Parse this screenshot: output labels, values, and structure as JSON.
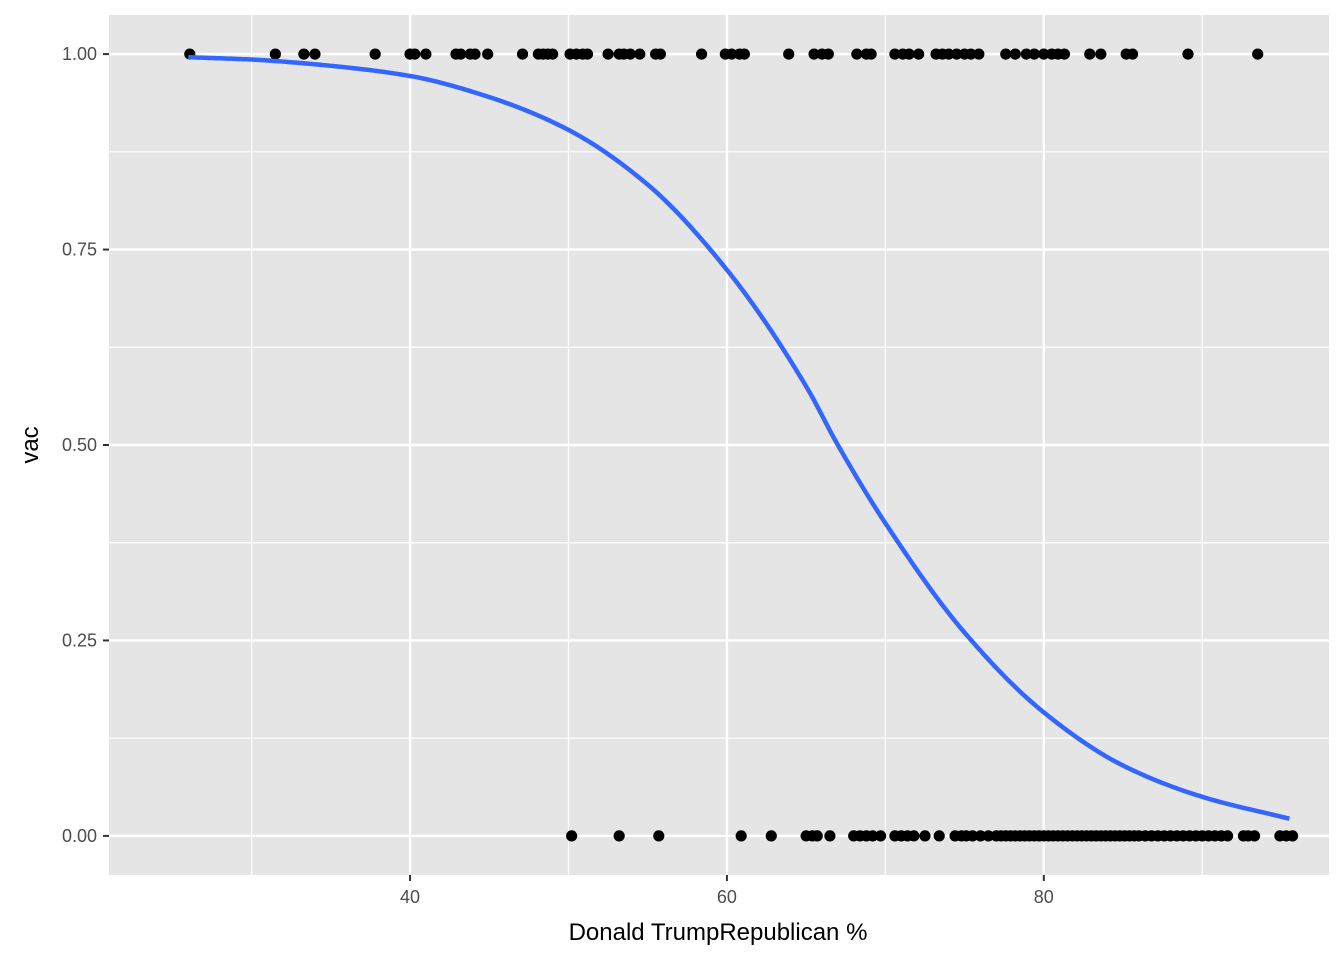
{
  "chart_data": {
    "type": "scatter",
    "title": "",
    "xlabel": "Donald TrumpRepublican %",
    "ylabel": "vac",
    "xlim": [
      21.0,
      98.0
    ],
    "ylim": [
      -0.05,
      1.05
    ],
    "x_ticks": [
      40,
      60,
      80
    ],
    "x_minor_ticks": [
      30,
      50,
      70,
      90
    ],
    "y_ticks": [
      0.0,
      0.25,
      0.5,
      0.75,
      1.0
    ],
    "y_tick_labels": [
      "0.00",
      "0.25",
      "0.50",
      "0.75",
      "1.00"
    ],
    "y_minor_ticks": [
      0.125,
      0.375,
      0.625,
      0.875
    ],
    "grid": true,
    "panel_background": "#e5e5e5",
    "grid_color": "#ffffff",
    "point_color": "#000000",
    "curve_color": "#3366ff",
    "series": [
      {
        "kind": "points",
        "y": 1,
        "x": [
          26.1,
          31.5,
          33.3,
          34.0,
          37.8,
          40.0,
          40.3,
          41.0,
          42.9,
          43.2,
          43.8,
          44.1,
          44.9,
          47.1,
          48.1,
          48.4,
          48.7,
          49.0,
          50.1,
          50.5,
          50.9,
          51.2,
          52.5,
          53.2,
          53.5,
          53.9,
          54.5,
          55.5,
          55.8,
          58.4,
          59.9,
          60.3,
          60.8,
          61.1,
          63.9,
          65.5,
          66.0,
          66.4,
          68.2,
          68.8,
          69.1,
          70.6,
          71.1,
          71.5,
          72.1,
          73.2,
          73.6,
          74.0,
          74.5,
          75.0,
          75.4,
          75.9,
          77.6,
          78.2,
          78.9,
          79.4,
          80.0,
          80.5,
          80.9,
          81.3,
          82.9,
          83.6,
          85.2,
          85.6,
          89.1,
          93.5
        ]
      },
      {
        "kind": "points",
        "y": 0,
        "x": [
          50.2,
          53.2,
          55.7,
          60.9,
          62.8,
          65.0,
          65.4,
          65.7,
          66.5,
          68.0,
          68.4,
          68.8,
          69.2,
          69.7,
          70.6,
          71.0,
          71.4,
          71.8,
          72.5,
          73.4,
          74.4,
          74.8,
          75.1,
          75.5,
          76.0,
          76.5,
          77.0,
          77.3,
          77.6,
          77.9,
          78.2,
          78.5,
          78.8,
          79.1,
          79.4,
          79.7,
          80.0,
          80.3,
          80.6,
          80.9,
          81.2,
          81.5,
          81.8,
          82.1,
          82.4,
          82.7,
          83.0,
          83.3,
          83.6,
          83.9,
          84.2,
          84.5,
          84.8,
          85.1,
          85.4,
          85.7,
          86.0,
          86.4,
          86.8,
          87.2,
          87.6,
          88.0,
          88.4,
          88.8,
          89.2,
          89.6,
          90.0,
          90.4,
          90.8,
          91.2,
          91.6,
          92.6,
          92.9,
          93.3,
          94.9,
          95.3,
          95.7
        ]
      },
      {
        "kind": "curve",
        "x": [
          26.0,
          30.0,
          35.0,
          40.0,
          45.0,
          50.0,
          55.0,
          60.0,
          65.0,
          67.0,
          70.0,
          75.0,
          80.0,
          85.0,
          90.0,
          95.5
        ],
        "y": [
          0.996,
          0.993,
          0.985,
          0.972,
          0.945,
          0.903,
          0.833,
          0.724,
          0.575,
          0.5,
          0.4,
          0.26,
          0.158,
          0.09,
          0.05,
          0.022
        ]
      }
    ]
  }
}
